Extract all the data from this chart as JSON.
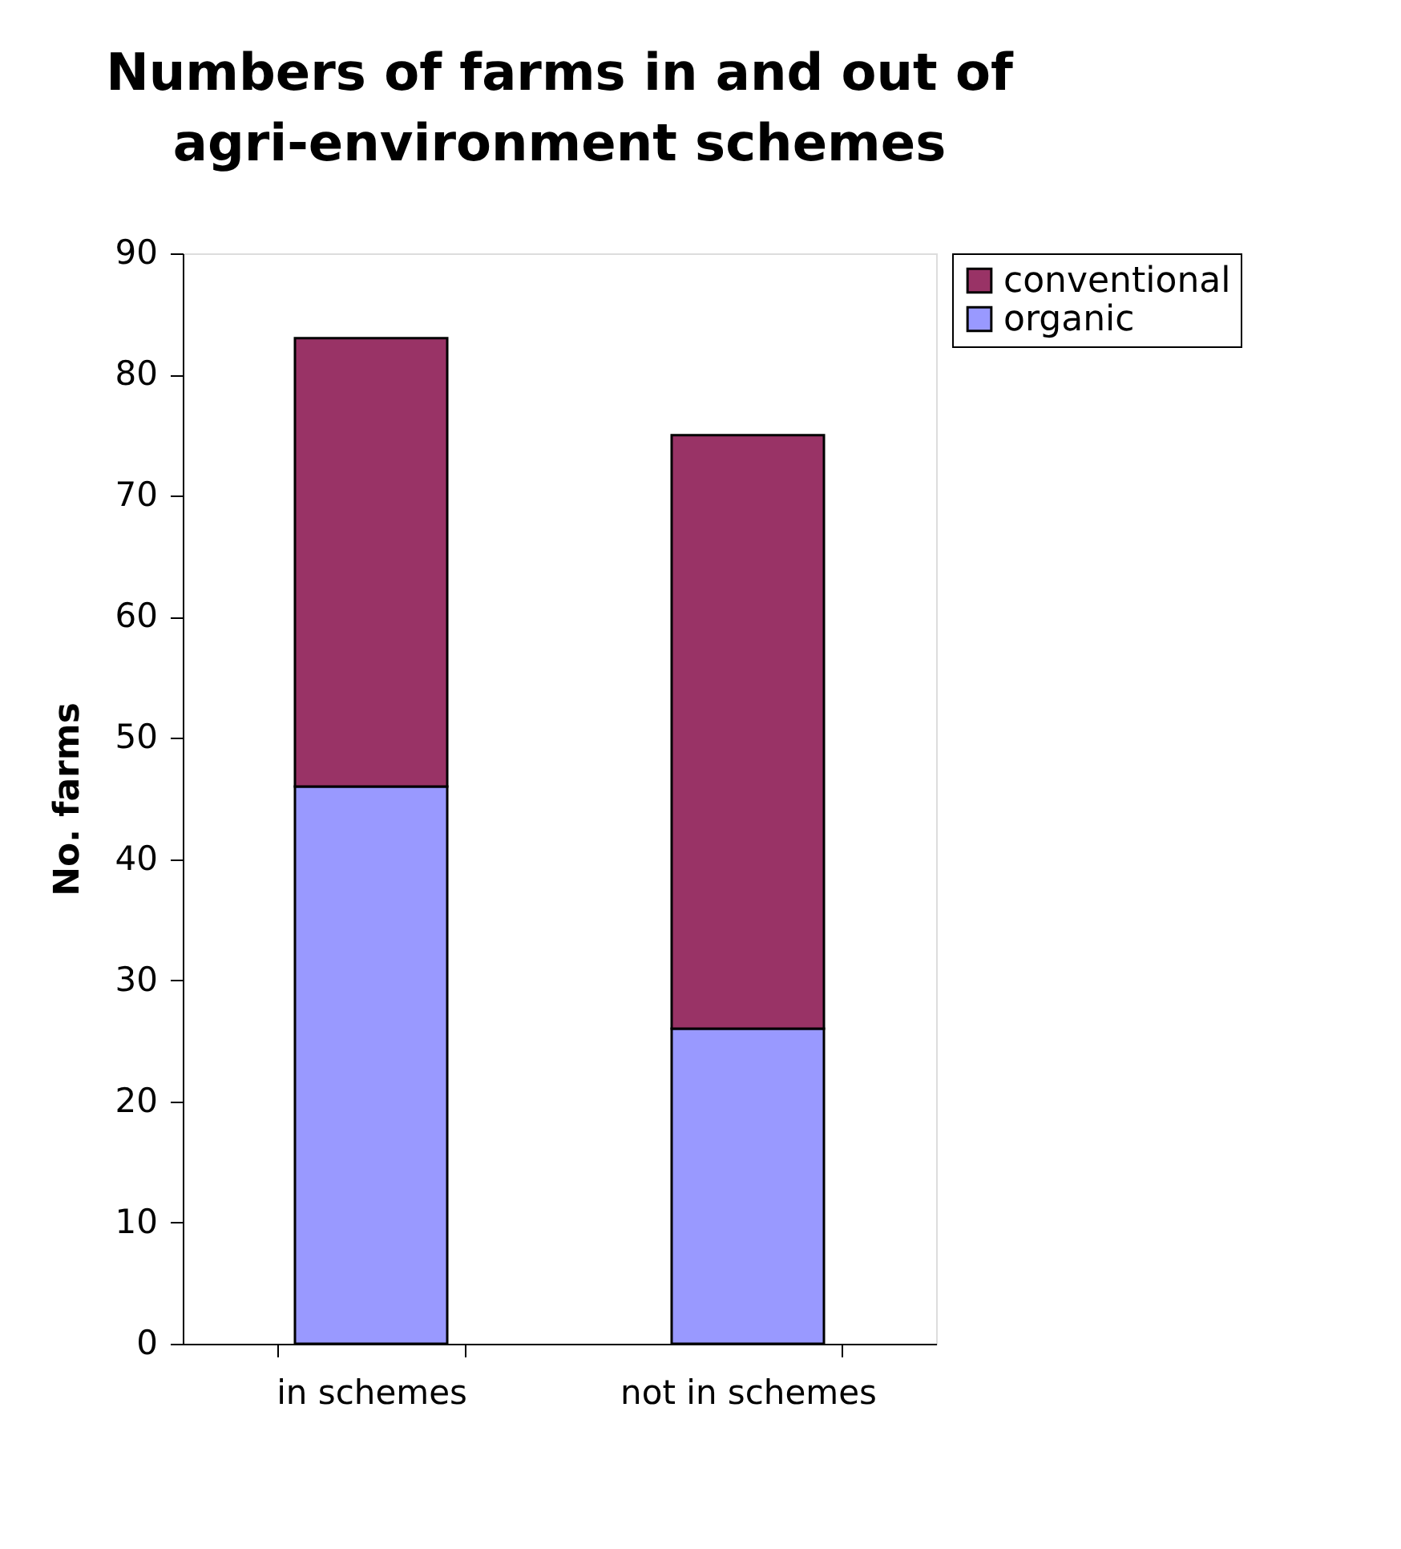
{
  "chart_data": {
    "type": "bar",
    "title": "Numbers of farms in and out of agri-environment schemes",
    "ylabel": "No. farms",
    "categories": [
      "in schemes",
      "not in schemes"
    ],
    "stacked": true,
    "series": [
      {
        "name": "organic",
        "color": "#9999ff",
        "values": [
          46,
          26
        ]
      },
      {
        "name": "conventional",
        "color": "#993366",
        "values": [
          37,
          49
        ]
      }
    ],
    "ylim": [
      0,
      90
    ],
    "yticks": [
      0,
      10,
      20,
      30,
      40,
      50,
      60,
      70,
      80,
      90
    ],
    "grid": false,
    "legend": "right"
  }
}
